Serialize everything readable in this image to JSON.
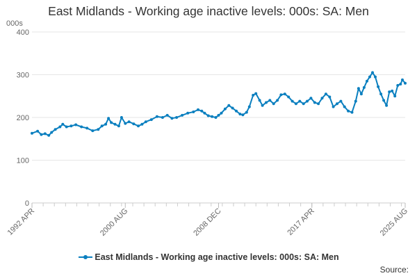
{
  "chart_data": {
    "type": "line",
    "title": "East Midlands - Working age inactive levels: 000s: SA: Men",
    "ylabel": "000s",
    "xlabel": "",
    "ylim": [
      0,
      400
    ],
    "yticks": [
      0,
      100,
      200,
      300,
      400
    ],
    "xlim": [
      "1992-04",
      "2025-08"
    ],
    "xticks": [
      "1992 APR",
      "2000 AUG",
      "2008 DEC",
      "2017 APR",
      "2025 AUG"
    ],
    "grid": "horizontal",
    "legend_position": "bottom",
    "line_color": "#0a7fbf",
    "series": [
      {
        "name": "East Midlands - Working age inactive levels: 000s: SA: Men",
        "points": [
          [
            "1992-04",
            163
          ],
          [
            "1992-10",
            168
          ],
          [
            "1993-02",
            160
          ],
          [
            "1993-06",
            162
          ],
          [
            "1993-10",
            158
          ],
          [
            "1994-01",
            165
          ],
          [
            "1994-05",
            172
          ],
          [
            "1994-10",
            178
          ],
          [
            "1995-01",
            184
          ],
          [
            "1995-05",
            178
          ],
          [
            "1995-10",
            180
          ],
          [
            "1996-03",
            183
          ],
          [
            "1996-09",
            178
          ],
          [
            "1997-03",
            175
          ],
          [
            "1997-09",
            169
          ],
          [
            "1998-03",
            172
          ],
          [
            "1998-07",
            180
          ],
          [
            "1998-11",
            184
          ],
          [
            "1999-02",
            198
          ],
          [
            "1999-05",
            188
          ],
          [
            "1999-09",
            184
          ],
          [
            "2000-01",
            180
          ],
          [
            "2000-04",
            200
          ],
          [
            "2000-08",
            186
          ],
          [
            "2000-12",
            190
          ],
          [
            "2001-05",
            185
          ],
          [
            "2001-10",
            180
          ],
          [
            "2002-02",
            184
          ],
          [
            "2002-06",
            190
          ],
          [
            "2002-12",
            195
          ],
          [
            "2003-06",
            202
          ],
          [
            "2003-12",
            200
          ],
          [
            "2004-05",
            205
          ],
          [
            "2004-10",
            198
          ],
          [
            "2005-03",
            200
          ],
          [
            "2005-09",
            205
          ],
          [
            "2006-03",
            210
          ],
          [
            "2006-09",
            213
          ],
          [
            "2007-02",
            218
          ],
          [
            "2007-06",
            215
          ],
          [
            "2007-09",
            210
          ],
          [
            "2008-01",
            204
          ],
          [
            "2008-05",
            202
          ],
          [
            "2008-09",
            200
          ],
          [
            "2008-12",
            205
          ],
          [
            "2009-03",
            210
          ],
          [
            "2009-07",
            220
          ],
          [
            "2009-11",
            228
          ],
          [
            "2010-03",
            222
          ],
          [
            "2010-07",
            215
          ],
          [
            "2010-11",
            208
          ],
          [
            "2011-02",
            206
          ],
          [
            "2011-06",
            212
          ],
          [
            "2011-09",
            225
          ],
          [
            "2012-01",
            252
          ],
          [
            "2012-04",
            256
          ],
          [
            "2012-08",
            240
          ],
          [
            "2012-11",
            228
          ],
          [
            "2013-03",
            235
          ],
          [
            "2013-07",
            240
          ],
          [
            "2013-11",
            232
          ],
          [
            "2014-03",
            240
          ],
          [
            "2014-07",
            253
          ],
          [
            "2014-11",
            255
          ],
          [
            "2015-03",
            248
          ],
          [
            "2015-07",
            238
          ],
          [
            "2015-11",
            232
          ],
          [
            "2016-03",
            238
          ],
          [
            "2016-07",
            232
          ],
          [
            "2016-11",
            238
          ],
          [
            "2017-03",
            245
          ],
          [
            "2017-07",
            235
          ],
          [
            "2017-11",
            232
          ],
          [
            "2018-03",
            245
          ],
          [
            "2018-07",
            255
          ],
          [
            "2018-11",
            248
          ],
          [
            "2019-03",
            225
          ],
          [
            "2019-07",
            232
          ],
          [
            "2019-11",
            238
          ],
          [
            "2020-03",
            225
          ],
          [
            "2020-07",
            215
          ],
          [
            "2020-11",
            212
          ],
          [
            "2021-03",
            238
          ],
          [
            "2021-06",
            268
          ],
          [
            "2021-09",
            255
          ],
          [
            "2021-12",
            270
          ],
          [
            "2022-03",
            285
          ],
          [
            "2022-06",
            295
          ],
          [
            "2022-09",
            305
          ],
          [
            "2022-12",
            295
          ],
          [
            "2023-03",
            272
          ],
          [
            "2023-06",
            255
          ],
          [
            "2023-09",
            240
          ],
          [
            "2023-12",
            228
          ],
          [
            "2024-03",
            260
          ],
          [
            "2024-06",
            262
          ],
          [
            "2024-09",
            250
          ],
          [
            "2024-12",
            275
          ],
          [
            "2025-03",
            278
          ],
          [
            "2025-05",
            288
          ],
          [
            "2025-08",
            280
          ]
        ]
      }
    ]
  },
  "footer": {
    "source_label": "Source:"
  }
}
